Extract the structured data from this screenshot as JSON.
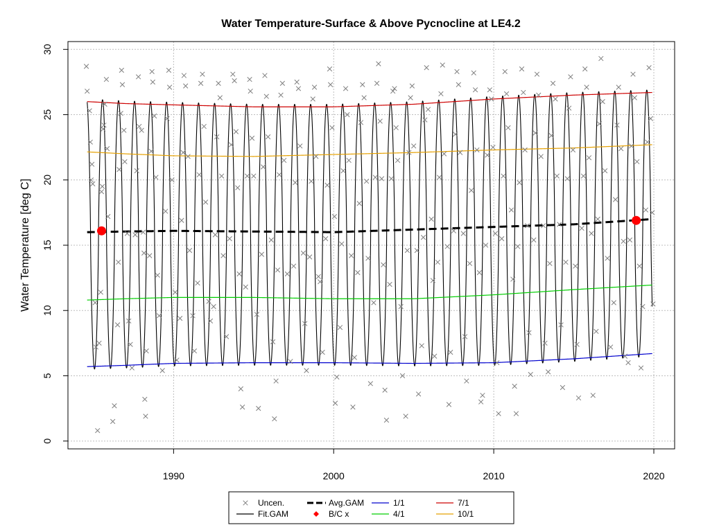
{
  "chart_data": {
    "type": "line",
    "title": "Water Temperature-Surface & Above Pycnocline at LE4.2",
    "xlabel": "",
    "ylabel": "Water Temperature [deg C]",
    "xlim": [
      1983.4,
      2021.3
    ],
    "ylim": [
      -0.6,
      30.6
    ],
    "x_ticks": [
      1990,
      2000,
      2010,
      2020
    ],
    "y_ticks": [
      0,
      5,
      10,
      15,
      20,
      25,
      30
    ],
    "grid": true,
    "legend_placement": "bottom-center",
    "colors": {
      "uncen": "#7f7f7f",
      "fit_gam": "#000000",
      "avg_gam": "#000000",
      "bc": "#ff0000",
      "jan1": "#0000cd",
      "apr1": "#00cd00",
      "jul1": "#cd0000",
      "oct1": "#e5a000",
      "grid": "#bebebe"
    },
    "legend": [
      {
        "key": "uncen",
        "label": "Uncen.",
        "symbol": "x"
      },
      {
        "key": "fit_gam",
        "label": "Fit.GAM",
        "symbol": "line"
      },
      {
        "key": "avg_gam",
        "label": "Avg.GAM",
        "symbol": "dash"
      },
      {
        "key": "bc",
        "label": "B/C x",
        "symbol": "diamond"
      },
      {
        "key": "jan1",
        "label": "1/1",
        "symbol": "line"
      },
      {
        "key": "apr1",
        "label": "4/1",
        "symbol": "line"
      },
      {
        "key": "jul1",
        "label": "7/1",
        "symbol": "line"
      },
      {
        "key": "oct1",
        "label": "10/1",
        "symbol": "line"
      }
    ],
    "series": [
      {
        "name": "1/1",
        "key": "jan1",
        "x": [
          1984.6,
          1987,
          1990,
          1995,
          2000,
          2005,
          2010,
          2015,
          2019.9
        ],
        "y": [
          5.7,
          5.8,
          5.95,
          6.0,
          6.0,
          5.95,
          6.0,
          6.3,
          6.7
        ]
      },
      {
        "name": "4/1",
        "key": "apr1",
        "x": [
          1984.6,
          1987,
          1990,
          1995,
          2000,
          2005,
          2010,
          2015,
          2019.9
        ],
        "y": [
          10.8,
          10.9,
          11.0,
          11.0,
          10.9,
          10.9,
          11.2,
          11.6,
          11.95
        ]
      },
      {
        "name": "7/1",
        "key": "jul1",
        "x": [
          1984.6,
          1987,
          1990,
          1995,
          2000,
          2005,
          2010,
          2015,
          2019.9
        ],
        "y": [
          26.0,
          25.85,
          25.75,
          25.6,
          25.6,
          25.8,
          26.2,
          26.5,
          26.7
        ]
      },
      {
        "name": "10/1",
        "key": "oct1",
        "x": [
          1984.6,
          1987,
          1990,
          1995,
          2000,
          2005,
          2010,
          2015,
          2019.9
        ],
        "y": [
          22.15,
          22.0,
          21.85,
          21.8,
          21.95,
          22.1,
          22.3,
          22.45,
          22.7
        ]
      },
      {
        "name": "Avg.GAM",
        "key": "avg_gam",
        "x": [
          1984.6,
          1987,
          1990,
          1995,
          2000,
          2005,
          2010,
          2015,
          2019.9
        ],
        "y": [
          16.0,
          16.05,
          16.1,
          16.05,
          16.0,
          16.2,
          16.4,
          16.6,
          17.0
        ]
      }
    ],
    "fit_gam": {
      "x_start": 1984.6,
      "x_end": 2019.9,
      "label": "Fit.GAM"
    },
    "bc_points": [
      {
        "x": 1985.5,
        "y": 16.1
      },
      {
        "x": 2018.9,
        "y": 16.9
      }
    ],
    "uncen_points": [
      [
        1984.55,
        28.7
      ],
      [
        1984.6,
        26.8
      ],
      [
        1984.75,
        25.3
      ],
      [
        1984.8,
        22.9
      ],
      [
        1984.85,
        20.0
      ],
      [
        1984.9,
        21.2
      ],
      [
        1984.95,
        19.7
      ],
      [
        1985.1,
        10.6
      ],
      [
        1985.15,
        7.2
      ],
      [
        1985.25,
        0.8
      ],
      [
        1985.35,
        7.5
      ],
      [
        1985.45,
        11.4
      ],
      [
        1985.5,
        19.1
      ],
      [
        1985.55,
        19.5
      ],
      [
        1985.6,
        23.9
      ],
      [
        1985.65,
        24.2
      ],
      [
        1985.7,
        25.8
      ],
      [
        1985.8,
        27.7
      ],
      [
        1985.85,
        22.4
      ],
      [
        1985.9,
        17.2
      ],
      [
        1986.2,
        1.5
      ],
      [
        1986.3,
        2.7
      ],
      [
        1986.5,
        8.9
      ],
      [
        1986.55,
        13.7
      ],
      [
        1986.6,
        20.8
      ],
      [
        1986.7,
        25.1
      ],
      [
        1986.75,
        28.4
      ],
      [
        1986.8,
        27.3
      ],
      [
        1986.9,
        23.8
      ],
      [
        1986.95,
        21.4
      ],
      [
        1987.1,
        15.9
      ],
      [
        1987.2,
        9.2
      ],
      [
        1987.3,
        7.4
      ],
      [
        1987.4,
        5.6
      ],
      [
        1987.6,
        15.8
      ],
      [
        1987.7,
        20.7
      ],
      [
        1987.8,
        27.9
      ],
      [
        1987.85,
        24.1
      ],
      [
        1988.0,
        23.8
      ],
      [
        1988.1,
        16.0
      ],
      [
        1988.15,
        14.4
      ],
      [
        1988.2,
        3.2
      ],
      [
        1988.25,
        1.9
      ],
      [
        1988.3,
        6.9
      ],
      [
        1988.5,
        14.2
      ],
      [
        1988.6,
        22.2
      ],
      [
        1988.65,
        28.3
      ],
      [
        1988.7,
        27.5
      ],
      [
        1988.8,
        24.9
      ],
      [
        1988.9,
        20.2
      ],
      [
        1989.0,
        12.7
      ],
      [
        1989.1,
        9.6
      ],
      [
        1989.3,
        5.4
      ],
      [
        1989.5,
        17.6
      ],
      [
        1989.6,
        24.7
      ],
      [
        1989.7,
        28.4
      ],
      [
        1989.75,
        27.1
      ],
      [
        1989.9,
        20.0
      ],
      [
        1990.1,
        11.4
      ],
      [
        1990.2,
        6.2
      ],
      [
        1990.4,
        9.4
      ],
      [
        1990.5,
        16.9
      ],
      [
        1990.6,
        22.1
      ],
      [
        1990.65,
        28.0
      ],
      [
        1990.75,
        27.2
      ],
      [
        1990.9,
        21.8
      ],
      [
        1991.0,
        14.6
      ],
      [
        1991.2,
        9.6
      ],
      [
        1991.3,
        6.9
      ],
      [
        1991.5,
        12.1
      ],
      [
        1991.6,
        20.4
      ],
      [
        1991.7,
        27.4
      ],
      [
        1991.8,
        28.1
      ],
      [
        1991.9,
        24.1
      ],
      [
        1992.0,
        18.3
      ],
      [
        1992.2,
        10.7
      ],
      [
        1992.3,
        9.2
      ],
      [
        1992.5,
        10.3
      ],
      [
        1992.6,
        15.8
      ],
      [
        1992.7,
        23.3
      ],
      [
        1992.8,
        27.4
      ],
      [
        1992.9,
        26.3
      ],
      [
        1993.0,
        20.3
      ],
      [
        1993.1,
        14.2
      ],
      [
        1993.3,
        8.0
      ],
      [
        1993.5,
        15.5
      ],
      [
        1993.6,
        22.7
      ],
      [
        1993.7,
        28.1
      ],
      [
        1993.8,
        27.6
      ],
      [
        1993.9,
        23.7
      ],
      [
        1994.0,
        19.4
      ],
      [
        1994.1,
        12.8
      ],
      [
        1994.2,
        4.0
      ],
      [
        1994.3,
        2.6
      ],
      [
        1994.5,
        11.8
      ],
      [
        1994.6,
        20.3
      ],
      [
        1994.75,
        27.7
      ],
      [
        1994.8,
        26.8
      ],
      [
        1994.9,
        23.2
      ],
      [
        1995.0,
        20.3
      ],
      [
        1995.2,
        9.7
      ],
      [
        1995.3,
        2.5
      ],
      [
        1995.5,
        14.3
      ],
      [
        1995.6,
        21.0
      ],
      [
        1995.7,
        28.0
      ],
      [
        1995.8,
        26.4
      ],
      [
        1995.9,
        23.3
      ],
      [
        1996.1,
        15.4
      ],
      [
        1996.2,
        7.6
      ],
      [
        1996.3,
        1.7
      ],
      [
        1996.4,
        4.6
      ],
      [
        1996.5,
        13.1
      ],
      [
        1996.6,
        20.4
      ],
      [
        1996.7,
        26.5
      ],
      [
        1996.8,
        27.4
      ],
      [
        1996.9,
        21.5
      ],
      [
        1997.1,
        12.8
      ],
      [
        1997.3,
        6.1
      ],
      [
        1997.5,
        13.4
      ],
      [
        1997.6,
        19.8
      ],
      [
        1997.7,
        27.5
      ],
      [
        1997.8,
        27.0
      ],
      [
        1997.9,
        22.6
      ],
      [
        1998.1,
        14.4
      ],
      [
        1998.2,
        9.0
      ],
      [
        1998.3,
        5.4
      ],
      [
        1998.5,
        14.1
      ],
      [
        1998.6,
        19.9
      ],
      [
        1998.7,
        26.2
      ],
      [
        1998.8,
        27.1
      ],
      [
        1998.9,
        21.8
      ],
      [
        1999.05,
        12.6
      ],
      [
        1999.15,
        12.2
      ],
      [
        1999.3,
        6.8
      ],
      [
        1999.5,
        15.5
      ],
      [
        1999.6,
        19.6
      ],
      [
        1999.75,
        28.5
      ],
      [
        1999.8,
        27.3
      ],
      [
        1999.9,
        24.0
      ],
      [
        2000.05,
        17.2
      ],
      [
        2000.1,
        2.9
      ],
      [
        2000.2,
        4.9
      ],
      [
        2000.4,
        8.7
      ],
      [
        2000.5,
        15.1
      ],
      [
        2000.6,
        20.7
      ],
      [
        2000.75,
        27.0
      ],
      [
        2000.85,
        25.0
      ],
      [
        2000.95,
        21.5
      ],
      [
        2001.1,
        14.2
      ],
      [
        2001.2,
        2.6
      ],
      [
        2001.3,
        6.4
      ],
      [
        2001.5,
        12.9
      ],
      [
        2001.6,
        18.2
      ],
      [
        2001.7,
        24.4
      ],
      [
        2001.8,
        27.3
      ],
      [
        2001.9,
        26.3
      ],
      [
        2002.05,
        19.9
      ],
      [
        2002.15,
        14.0
      ],
      [
        2002.3,
        4.4
      ],
      [
        2002.5,
        10.6
      ],
      [
        2002.6,
        20.2
      ],
      [
        2002.7,
        27.4
      ],
      [
        2002.8,
        28.9
      ],
      [
        2002.9,
        24.5
      ],
      [
        2003.0,
        20.1
      ],
      [
        2003.1,
        13.5
      ],
      [
        2003.2,
        3.9
      ],
      [
        2003.3,
        1.6
      ],
      [
        2003.5,
        12.0
      ],
      [
        2003.6,
        20.1
      ],
      [
        2003.7,
        26.8
      ],
      [
        2003.8,
        27.0
      ],
      [
        2003.9,
        24.0
      ],
      [
        2004.0,
        21.5
      ],
      [
        2004.2,
        10.3
      ],
      [
        2004.3,
        5.0
      ],
      [
        2004.5,
        1.9
      ],
      [
        2004.6,
        14.6
      ],
      [
        2004.7,
        22.1
      ],
      [
        2004.8,
        26.3
      ],
      [
        2004.9,
        27.2
      ],
      [
        2005.0,
        22.6
      ],
      [
        2005.2,
        14.6
      ],
      [
        2005.3,
        3.6
      ],
      [
        2005.5,
        7.3
      ],
      [
        2005.6,
        15.6
      ],
      [
        2005.7,
        24.6
      ],
      [
        2005.8,
        28.6
      ],
      [
        2005.9,
        25.4
      ],
      [
        2006.1,
        17.0
      ],
      [
        2006.2,
        12.3
      ],
      [
        2006.3,
        6.5
      ],
      [
        2006.5,
        13.7
      ],
      [
        2006.6,
        20.2
      ],
      [
        2006.7,
        26.6
      ],
      [
        2006.8,
        28.8
      ],
      [
        2006.9,
        22.0
      ],
      [
        2007.1,
        14.9
      ],
      [
        2007.2,
        2.8
      ],
      [
        2007.3,
        6.8
      ],
      [
        2007.5,
        16.1
      ],
      [
        2007.6,
        23.5
      ],
      [
        2007.7,
        28.3
      ],
      [
        2007.8,
        27.3
      ],
      [
        2007.9,
        22.1
      ],
      [
        2008.1,
        15.9
      ],
      [
        2008.2,
        8.0
      ],
      [
        2008.3,
        4.6
      ],
      [
        2008.5,
        13.6
      ],
      [
        2008.6,
        19.2
      ],
      [
        2008.75,
        28.2
      ],
      [
        2008.85,
        26.9
      ],
      [
        2008.95,
        22.3
      ],
      [
        2009.1,
        12.9
      ],
      [
        2009.2,
        3.0
      ],
      [
        2009.3,
        3.5
      ],
      [
        2009.5,
        15.0
      ],
      [
        2009.6,
        21.9
      ],
      [
        2009.75,
        26.9
      ],
      [
        2009.85,
        26.2
      ],
      [
        2009.95,
        22.5
      ],
      [
        2010.1,
        15.9
      ],
      [
        2010.2,
        6.0
      ],
      [
        2010.3,
        2.1
      ],
      [
        2010.5,
        15.5
      ],
      [
        2010.6,
        20.3
      ],
      [
        2010.7,
        28.3
      ],
      [
        2010.8,
        26.6
      ],
      [
        2010.9,
        24.0
      ],
      [
        2011.1,
        17.7
      ],
      [
        2011.2,
        12.4
      ],
      [
        2011.3,
        4.2
      ],
      [
        2011.4,
        2.1
      ],
      [
        2011.5,
        14.9
      ],
      [
        2011.6,
        19.8
      ],
      [
        2011.75,
        28.5
      ],
      [
        2011.85,
        26.7
      ],
      [
        2011.95,
        22.3
      ],
      [
        2012.1,
        16.5
      ],
      [
        2012.2,
        8.3
      ],
      [
        2012.3,
        5.1
      ],
      [
        2012.5,
        15.4
      ],
      [
        2012.6,
        23.6
      ],
      [
        2012.7,
        28.1
      ],
      [
        2012.8,
        26.5
      ],
      [
        2012.95,
        21.8
      ],
      [
        2013.1,
        16.5
      ],
      [
        2013.2,
        7.5
      ],
      [
        2013.4,
        5.3
      ],
      [
        2013.5,
        13.6
      ],
      [
        2013.6,
        23.4
      ],
      [
        2013.7,
        27.4
      ],
      [
        2013.85,
        26.2
      ],
      [
        2013.95,
        20.3
      ],
      [
        2014.1,
        16.6
      ],
      [
        2014.2,
        8.9
      ],
      [
        2014.3,
        4.1
      ],
      [
        2014.5,
        13.7
      ],
      [
        2014.6,
        20.1
      ],
      [
        2014.7,
        25.5
      ],
      [
        2014.8,
        27.9
      ],
      [
        2014.95,
        22.3
      ],
      [
        2015.1,
        13.4
      ],
      [
        2015.2,
        7.4
      ],
      [
        2015.3,
        3.3
      ],
      [
        2015.5,
        16.3
      ],
      [
        2015.6,
        20.3
      ],
      [
        2015.7,
        28.5
      ],
      [
        2015.8,
        27.1
      ],
      [
        2015.95,
        21.7
      ],
      [
        2016.1,
        15.9
      ],
      [
        2016.2,
        3.5
      ],
      [
        2016.4,
        8.4
      ],
      [
        2016.5,
        17.0
      ],
      [
        2016.6,
        24.3
      ],
      [
        2016.7,
        29.3
      ],
      [
        2016.8,
        26.0
      ],
      [
        2016.95,
        20.7
      ],
      [
        2017.1,
        14.0
      ],
      [
        2017.3,
        7.2
      ],
      [
        2017.5,
        10.6
      ],
      [
        2017.6,
        18.5
      ],
      [
        2017.7,
        24.2
      ],
      [
        2017.8,
        27.1
      ],
      [
        2017.95,
        22.4
      ],
      [
        2018.1,
        15.3
      ],
      [
        2018.2,
        6.5
      ],
      [
        2018.4,
        6.0
      ],
      [
        2018.5,
        15.4
      ],
      [
        2018.6,
        22.6
      ],
      [
        2018.7,
        28.1
      ],
      [
        2018.8,
        26.3
      ],
      [
        2018.95,
        21.4
      ],
      [
        2019.1,
        13.4
      ],
      [
        2019.2,
        5.6
      ],
      [
        2019.3,
        10.3
      ],
      [
        2019.5,
        17.7
      ],
      [
        2019.6,
        22.9
      ],
      [
        2019.7,
        28.6
      ],
      [
        2019.8,
        24.7
      ],
      [
        2019.9,
        17.5
      ],
      [
        2019.95,
        10.5
      ]
    ]
  }
}
